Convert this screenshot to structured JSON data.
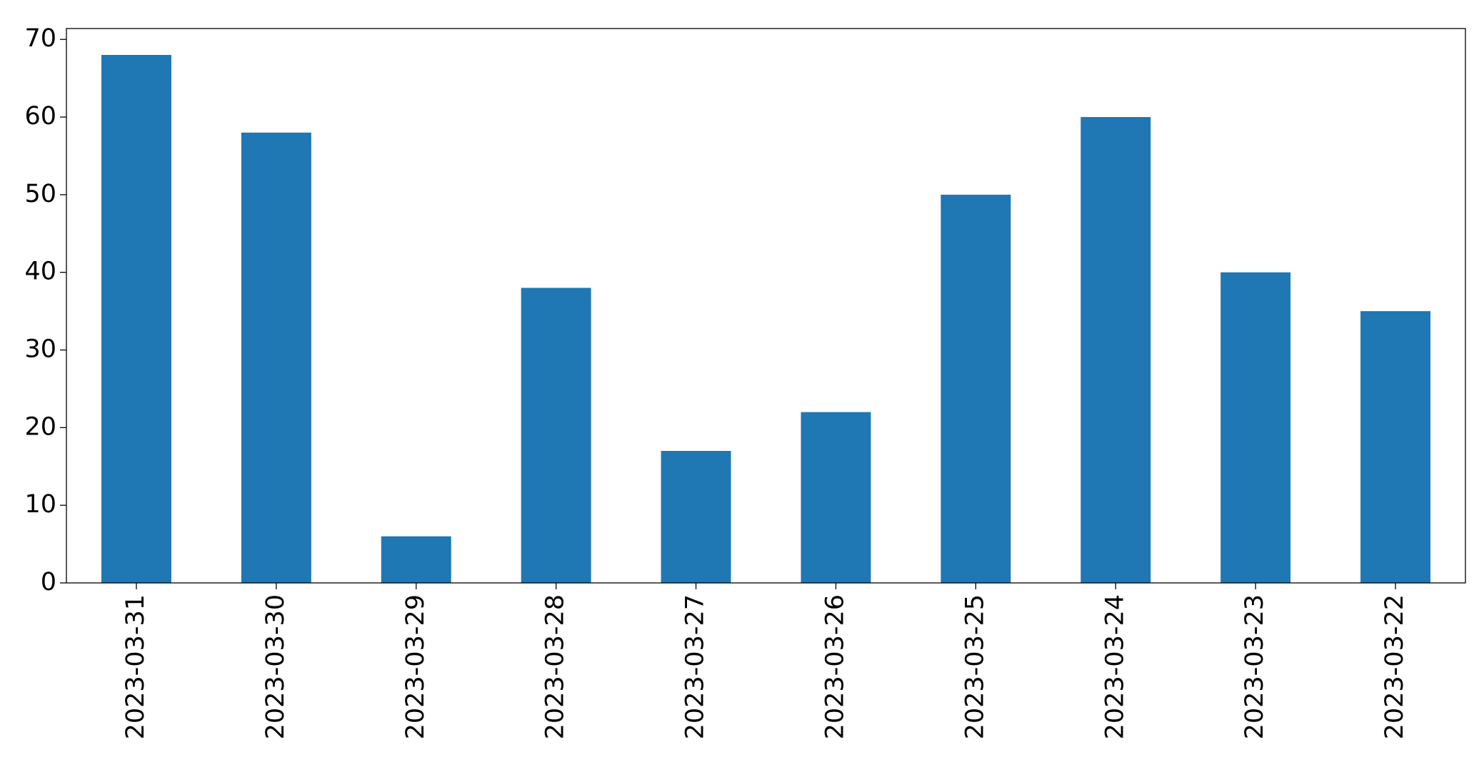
{
  "chart_data": {
    "type": "bar",
    "categories": [
      "2023-03-31",
      "2023-03-30",
      "2023-03-29",
      "2023-03-28",
      "2023-03-27",
      "2023-03-26",
      "2023-03-25",
      "2023-03-24",
      "2023-03-23",
      "2023-03-22"
    ],
    "values": [
      68,
      58,
      6,
      38,
      17,
      22,
      50,
      60,
      40,
      35
    ],
    "color": "#1f77b4",
    "ylim": [
      0,
      71.4
    ],
    "yticks": [
      0,
      10,
      20,
      30,
      40,
      50,
      60,
      70
    ],
    "grid": false
  }
}
